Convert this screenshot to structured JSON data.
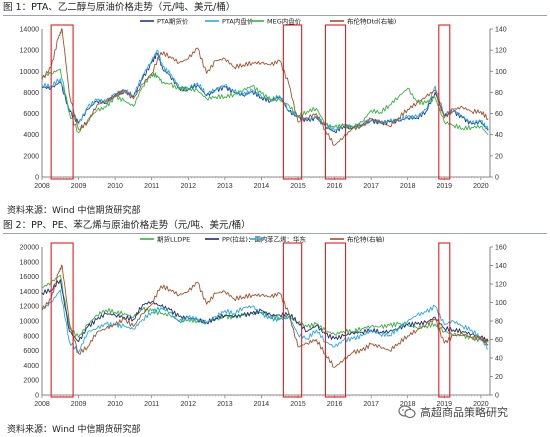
{
  "figure1": {
    "title": "图 1：PTA、乙二醇与原油价格走势（元/吨、美元/桶）",
    "source": "资料来源：Wind 中信期货研究部"
  },
  "figure2": {
    "title": "图 2：PP、PE、苯乙烯与原油价格走势（元/吨、美元/桶）",
    "source": "资料来源：Wind 中信期货研究部"
  },
  "watermark": {
    "text": "高超商品策略研究",
    "icon": "wechat-icon"
  },
  "chart_data": [
    {
      "type": "line",
      "x_ticks": [
        "2008",
        "2009",
        "2010",
        "2011",
        "2012",
        "2013",
        "2014",
        "2015",
        "2016",
        "2017",
        "2018",
        "2019",
        "2020"
      ],
      "xlim": [
        2008,
        2020.25
      ],
      "ylim_left": [
        0,
        14000
      ],
      "y_ticks_left": [
        0,
        2000,
        4000,
        6000,
        8000,
        10000,
        12000,
        14000
      ],
      "ylim_right": [
        0,
        140
      ],
      "y_ticks_right": [
        0,
        20,
        40,
        60,
        80,
        100,
        120,
        140
      ],
      "legend_position": "top",
      "highlight_ranges": [
        [
          2008.25,
          2008.85
        ],
        [
          2014.6,
          2015.1
        ],
        [
          2015.75,
          2016.3
        ],
        [
          2018.85,
          2019.15
        ]
      ],
      "series": [
        {
          "name": "PTA期货价",
          "color": "#1f3a8a",
          "axis": "left",
          "x": [
            2008,
            2008.25,
            2008.5,
            2008.75,
            2009,
            2009.25,
            2009.5,
            2009.75,
            2010,
            2010.25,
            2010.5,
            2010.75,
            2011,
            2011.15,
            2011.3,
            2011.5,
            2011.75,
            2012,
            2012.25,
            2012.5,
            2012.75,
            2013,
            2013.25,
            2013.5,
            2013.75,
            2014,
            2014.25,
            2014.5,
            2014.75,
            2015,
            2015.25,
            2015.5,
            2015.75,
            2016,
            2016.25,
            2016.5,
            2016.75,
            2017,
            2017.25,
            2017.5,
            2017.75,
            2018,
            2018.25,
            2018.5,
            2018.75,
            2019,
            2019.25,
            2019.5,
            2019.75,
            2020,
            2020.2
          ],
          "y": [
            8500,
            8400,
            9000,
            6200,
            5100,
            6400,
            7200,
            7000,
            7800,
            8100,
            7600,
            9300,
            10800,
            11700,
            10200,
            9600,
            8400,
            8300,
            8700,
            7700,
            8200,
            8500,
            8000,
            7700,
            8100,
            7500,
            7200,
            7600,
            6200,
            5700,
            5300,
            5600,
            4800,
            4300,
            4800,
            4700,
            4900,
            5300,
            5100,
            5200,
            5300,
            5600,
            5600,
            6200,
            8000,
            5800,
            6200,
            5600,
            5000,
            5200,
            4400
          ]
        },
        {
          "name": "PTA内盘价",
          "color": "#29a8e0",
          "axis": "left",
          "x": [
            2008,
            2008.25,
            2008.5,
            2008.75,
            2009,
            2009.25,
            2009.5,
            2009.75,
            2010,
            2010.25,
            2010.5,
            2010.75,
            2011,
            2011.15,
            2011.3,
            2011.5,
            2011.75,
            2012,
            2012.25,
            2012.5,
            2012.75,
            2013,
            2013.25,
            2013.5,
            2013.75,
            2014,
            2014.25,
            2014.5,
            2014.75,
            2015,
            2015.25,
            2015.5,
            2015.75,
            2016,
            2016.25,
            2016.5,
            2016.75,
            2017,
            2017.25,
            2017.5,
            2017.75,
            2018,
            2018.25,
            2018.5,
            2018.75,
            2019,
            2019.25,
            2019.5,
            2019.75,
            2020,
            2020.2
          ],
          "y": [
            8700,
            8600,
            9300,
            6400,
            5000,
            6600,
            7300,
            7100,
            7900,
            8200,
            7700,
            9600,
            11000,
            12000,
            10400,
            9800,
            8500,
            8400,
            8900,
            7800,
            8300,
            8700,
            8100,
            7800,
            8200,
            7600,
            7300,
            7700,
            6300,
            5800,
            5400,
            5700,
            4900,
            4400,
            4900,
            4800,
            5000,
            5400,
            5200,
            5300,
            5400,
            5700,
            5700,
            6400,
            8600,
            5900,
            6300,
            5700,
            5100,
            5300,
            4500
          ]
        },
        {
          "name": "MEG内盘价",
          "color": "#3cb043",
          "axis": "left",
          "x": [
            2008,
            2008.25,
            2008.5,
            2008.75,
            2009,
            2009.25,
            2009.5,
            2009.75,
            2010,
            2010.25,
            2010.5,
            2010.75,
            2011,
            2011.15,
            2011.3,
            2011.5,
            2011.75,
            2012,
            2012.25,
            2012.5,
            2012.75,
            2013,
            2013.25,
            2013.5,
            2013.75,
            2014,
            2014.25,
            2014.5,
            2014.75,
            2015,
            2015.25,
            2015.5,
            2015.75,
            2016,
            2016.25,
            2016.5,
            2016.75,
            2017,
            2017.25,
            2017.5,
            2017.75,
            2018,
            2018.25,
            2018.5,
            2018.75,
            2019,
            2019.25,
            2019.5,
            2019.75,
            2020,
            2020.2
          ],
          "y": [
            9500,
            9800,
            10200,
            6000,
            4200,
            5400,
            6300,
            6600,
            7600,
            7200,
            6700,
            8600,
            9700,
            9600,
            8900,
            8800,
            8300,
            8300,
            8200,
            7400,
            7600,
            7600,
            7800,
            8200,
            8600,
            7900,
            7300,
            7300,
            6800,
            5700,
            6200,
            6500,
            5000,
            4700,
            4900,
            4600,
            5200,
            6300,
            6100,
            6800,
            7600,
            8400,
            7100,
            7000,
            7500,
            5200,
            4900,
            4600,
            4700,
            4800,
            4000
          ]
        },
        {
          "name": "布伦特Dtd(右轴)",
          "color": "#a0522d",
          "axis": "right",
          "x": [
            2008,
            2008.25,
            2008.45,
            2008.55,
            2008.75,
            2009,
            2009.25,
            2009.5,
            2009.75,
            2010,
            2010.25,
            2010.5,
            2010.75,
            2011,
            2011.25,
            2011.5,
            2011.75,
            2012,
            2012.25,
            2012.5,
            2012.75,
            2013,
            2013.25,
            2013.5,
            2013.75,
            2014,
            2014.25,
            2014.5,
            2014.75,
            2015,
            2015.25,
            2015.5,
            2015.75,
            2016,
            2016.25,
            2016.5,
            2016.75,
            2017,
            2017.25,
            2017.5,
            2017.75,
            2018,
            2018.25,
            2018.5,
            2018.75,
            2019,
            2019.25,
            2019.5,
            2019.75,
            2020,
            2020.2
          ],
          "y": [
            92,
            104,
            132,
            140,
            78,
            45,
            52,
            68,
            72,
            76,
            82,
            74,
            88,
            98,
            118,
            114,
            108,
            112,
            122,
            98,
            110,
            112,
            104,
            106,
            108,
            108,
            106,
            110,
            88,
            52,
            56,
            60,
            44,
            30,
            38,
            46,
            48,
            55,
            52,
            48,
            56,
            64,
            70,
            76,
            82,
            56,
            64,
            66,
            62,
            62,
            55
          ]
        }
      ]
    },
    {
      "type": "line",
      "x_ticks": [
        "2008",
        "2009",
        "2010",
        "2011",
        "2012",
        "2013",
        "2014",
        "2015",
        "2016",
        "2017",
        "2018",
        "2019",
        "2020"
      ],
      "xlim": [
        2008,
        2020.25
      ],
      "ylim_left": [
        0,
        20000
      ],
      "y_ticks_left": [
        0,
        2000,
        4000,
        6000,
        8000,
        10000,
        12000,
        14000,
        16000,
        18000,
        20000
      ],
      "ylim_right": [
        0,
        160
      ],
      "y_ticks_right": [
        0,
        20,
        40,
        60,
        80,
        100,
        120,
        140,
        160
      ],
      "legend_position": "top",
      "highlight_ranges": [
        [
          2008.25,
          2008.85
        ],
        [
          2014.6,
          2015.1
        ],
        [
          2015.75,
          2016.3
        ],
        [
          2018.85,
          2019.15
        ]
      ],
      "series": [
        {
          "name": "期货LLDPE",
          "color": "#3cb043",
          "axis": "left",
          "x": [
            2008,
            2008.25,
            2008.5,
            2008.75,
            2009,
            2009.25,
            2009.5,
            2009.75,
            2010,
            2010.25,
            2010.5,
            2010.75,
            2011,
            2011.25,
            2011.5,
            2011.75,
            2012,
            2012.25,
            2012.5,
            2012.75,
            2013,
            2013.25,
            2013.5,
            2013.75,
            2014,
            2014.25,
            2014.5,
            2014.75,
            2015,
            2015.25,
            2015.5,
            2015.75,
            2016,
            2016.25,
            2016.5,
            2016.75,
            2017,
            2017.25,
            2017.5,
            2017.75,
            2018,
            2018.25,
            2018.5,
            2018.75,
            2019,
            2019.25,
            2019.5,
            2019.75,
            2020,
            2020.2
          ],
          "y": [
            14500,
            15200,
            16200,
            9000,
            7800,
            9500,
            10800,
            11500,
            11200,
            11000,
            10500,
            11600,
            11400,
            11000,
            10800,
            10000,
            10200,
            10000,
            9800,
            10200,
            10600,
            10500,
            10800,
            11000,
            11200,
            10600,
            10400,
            10600,
            9800,
            9200,
            9600,
            8700,
            8200,
            8600,
            8600,
            9000,
            9300,
            9200,
            9400,
            9600,
            9400,
            9100,
            9300,
            9600,
            8600,
            8200,
            8000,
            7700,
            7400,
            7100
          ]
        },
        {
          "name": "PP(拉丝)：国内",
          "color": "#1f2a6b",
          "axis": "left",
          "x": [
            2008,
            2008.25,
            2008.5,
            2008.75,
            2009,
            2009.25,
            2009.5,
            2009.75,
            2010,
            2010.25,
            2010.5,
            2010.75,
            2011,
            2011.25,
            2011.5,
            2011.75,
            2012,
            2012.25,
            2012.5,
            2012.75,
            2013,
            2013.25,
            2013.5,
            2013.75,
            2014,
            2014.25,
            2014.5,
            2014.75,
            2015,
            2015.25,
            2015.5,
            2015.75,
            2016,
            2016.25,
            2016.5,
            2016.75,
            2017,
            2017.25,
            2017.5,
            2017.75,
            2018,
            2018.25,
            2018.5,
            2018.75,
            2019,
            2019.25,
            2019.5,
            2019.75,
            2020,
            2020.2
          ],
          "y": [
            13800,
            14200,
            15600,
            8600,
            7200,
            9200,
            10200,
            11000,
            10800,
            10500,
            10200,
            12200,
            12600,
            12000,
            11500,
            10600,
            10400,
            10200,
            9800,
            10400,
            10800,
            10600,
            10800,
            11000,
            11400,
            10800,
            10800,
            11000,
            9800,
            8600,
            9400,
            8200,
            7600,
            8000,
            8400,
            8500,
            8800,
            8500,
            8600,
            9000,
            9500,
            9600,
            9800,
            10500,
            9000,
            8800,
            8600,
            8200,
            7800,
            7300
          ]
        },
        {
          "name": "苯乙烯：华东",
          "color": "#29a8e0",
          "axis": "left",
          "x": [
            2008,
            2008.25,
            2008.5,
            2008.75,
            2009,
            2009.25,
            2009.5,
            2009.75,
            2010,
            2010.25,
            2010.5,
            2010.75,
            2011,
            2011.25,
            2011.5,
            2011.75,
            2012,
            2012.25,
            2012.5,
            2012.75,
            2013,
            2013.25,
            2013.5,
            2013.75,
            2014,
            2014.25,
            2014.5,
            2014.75,
            2015,
            2015.25,
            2015.5,
            2015.75,
            2016,
            2016.25,
            2016.5,
            2016.75,
            2017,
            2017.25,
            2017.5,
            2017.75,
            2018,
            2018.25,
            2018.5,
            2018.75,
            2019,
            2019.25,
            2019.5,
            2019.75,
            2020,
            2020.2
          ],
          "y": [
            11500,
            12500,
            14200,
            7200,
            5800,
            8500,
            9000,
            9600,
            9400,
            9300,
            8900,
            10200,
            11200,
            11800,
            11200,
            9900,
            10500,
            10200,
            9800,
            10600,
            11400,
            11000,
            11800,
            12000,
            11000,
            10300,
            10200,
            10600,
            8200,
            7600,
            8800,
            7200,
            6500,
            7400,
            7600,
            8000,
            8700,
            8200,
            8100,
            9000,
            10000,
            10800,
            11200,
            12000,
            9500,
            10000,
            9300,
            8800,
            7600,
            6200
          ]
        },
        {
          "name": "布伦特(右轴)",
          "color": "#a0522d",
          "axis": "right",
          "x": [
            2008,
            2008.25,
            2008.45,
            2008.55,
            2008.75,
            2009,
            2009.25,
            2009.5,
            2009.75,
            2010,
            2010.25,
            2010.5,
            2010.75,
            2011,
            2011.25,
            2011.5,
            2011.75,
            2012,
            2012.25,
            2012.5,
            2012.75,
            2013,
            2013.25,
            2013.5,
            2013.75,
            2014,
            2014.25,
            2014.5,
            2014.75,
            2015,
            2015.25,
            2015.5,
            2015.75,
            2016,
            2016.25,
            2016.5,
            2016.75,
            2017,
            2017.25,
            2017.5,
            2017.75,
            2018,
            2018.25,
            2018.5,
            2018.75,
            2019,
            2019.25,
            2019.5,
            2019.75,
            2020,
            2020.2
          ],
          "y": [
            92,
            104,
            132,
            140,
            78,
            45,
            52,
            68,
            72,
            76,
            82,
            74,
            88,
            98,
            118,
            114,
            108,
            112,
            122,
            98,
            110,
            112,
            104,
            106,
            108,
            108,
            106,
            110,
            88,
            52,
            56,
            60,
            44,
            30,
            38,
            46,
            48,
            55,
            52,
            48,
            56,
            64,
            70,
            76,
            82,
            56,
            64,
            66,
            62,
            62,
            55
          ]
        }
      ]
    }
  ]
}
